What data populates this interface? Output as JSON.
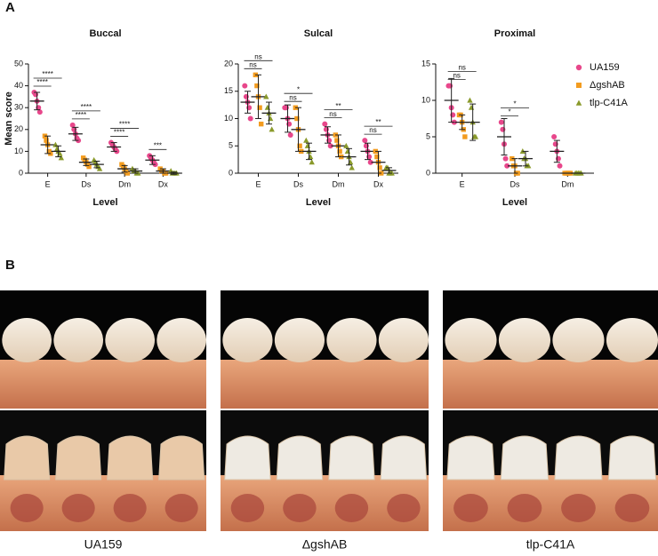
{
  "panel_labels": [
    "A",
    "B"
  ],
  "chart_data": [
    {
      "type": "dot-plot",
      "title": "Buccal",
      "xlabel": "Level",
      "ylabel": "Mean score",
      "categories": [
        "E",
        "Ds",
        "Dm",
        "Dx"
      ],
      "ylim": [
        0,
        50
      ],
      "yticks": [
        0,
        10,
        20,
        30,
        40,
        50
      ],
      "series": [
        {
          "color": "#e8478b",
          "marker": "circle",
          "values": [
            33,
            18,
            12,
            6
          ],
          "errors": [
            4,
            3,
            2,
            2
          ],
          "points": [
            [
              37,
              36,
              33,
              30,
              28
            ],
            [
              22,
              20,
              18,
              16,
              15
            ],
            [
              14,
              13,
              12,
              11,
              10
            ],
            [
              8,
              7,
              6,
              5,
              4
            ]
          ]
        },
        {
          "color": "#f39c1f",
          "marker": "square",
          "values": [
            13,
            5,
            2,
            1
          ],
          "errors": [
            4,
            1.5,
            1.5,
            1
          ],
          "points": [
            [
              17,
              15,
              13,
              10,
              9
            ],
            [
              7,
              6,
              5,
              4,
              3
            ],
            [
              4,
              3,
              2,
              1,
              0
            ],
            [
              2,
              1,
              1,
              0,
              0
            ]
          ]
        },
        {
          "color": "#8a9a2b",
          "marker": "triangle",
          "values": [
            10,
            4,
            1,
            0
          ],
          "errors": [
            2.5,
            1.5,
            1,
            0.5
          ],
          "points": [
            [
              13,
              11,
              10,
              9,
              7
            ],
            [
              6,
              5,
              4,
              3,
              2
            ],
            [
              2,
              1,
              1,
              0,
              0
            ],
            [
              1,
              0,
              0,
              0,
              0
            ]
          ]
        }
      ],
      "annotations": [
        {
          "category": 0,
          "pair": [
            0,
            1
          ],
          "text": "****"
        },
        {
          "category": 0,
          "pair": [
            0,
            2
          ],
          "text": "****"
        },
        {
          "category": 1,
          "pair": [
            0,
            1
          ],
          "text": "****"
        },
        {
          "category": 1,
          "pair": [
            0,
            2
          ],
          "text": "****"
        },
        {
          "category": 2,
          "pair": [
            0,
            1
          ],
          "text": "****"
        },
        {
          "category": 2,
          "pair": [
            0,
            2
          ],
          "text": "****"
        },
        {
          "category": 3,
          "pair": [
            0,
            1
          ],
          "text": "***"
        }
      ]
    },
    {
      "type": "dot-plot",
      "title": "Sulcal",
      "xlabel": "Level",
      "categories": [
        "E",
        "Ds",
        "Dm",
        "Dx"
      ],
      "ylim": [
        0,
        20
      ],
      "yticks": [
        0,
        5,
        10,
        15,
        20
      ],
      "series": [
        {
          "color": "#e8478b",
          "marker": "circle",
          "values": [
            13,
            10,
            7,
            4
          ],
          "errors": [
            2,
            2.5,
            1.5,
            1.5
          ],
          "points": [
            [
              16,
              14,
              13,
              12,
              10
            ],
            [
              12,
              12,
              10,
              9,
              7
            ],
            [
              9,
              8,
              7,
              6,
              5
            ],
            [
              6,
              5,
              4,
              3,
              2
            ]
          ]
        },
        {
          "color": "#f39c1f",
          "marker": "square",
          "values": [
            14,
            8,
            5,
            2
          ],
          "errors": [
            4,
            4,
            2,
            2
          ],
          "points": [
            [
              18,
              16,
              14,
              12,
              9
            ],
            [
              12,
              10,
              8,
              5,
              4
            ],
            [
              7,
              6,
              5,
              4,
              3
            ],
            [
              4,
              3,
              2,
              1,
              0
            ]
          ]
        },
        {
          "color": "#8a9a2b",
          "marker": "triangle",
          "values": [
            11,
            4,
            3,
            0.5
          ],
          "errors": [
            2,
            1.5,
            1.5,
            0.5
          ],
          "points": [
            [
              14,
              12,
              11,
              10,
              8
            ],
            [
              6,
              5,
              4,
              3,
              2
            ],
            [
              5,
              4,
              3,
              2,
              1
            ],
            [
              1,
              1,
              0,
              0,
              0
            ]
          ]
        }
      ],
      "annotations": [
        {
          "category": 0,
          "pair": [
            0,
            1
          ],
          "text": "ns"
        },
        {
          "category": 0,
          "pair": [
            0,
            2
          ],
          "text": "ns"
        },
        {
          "category": 1,
          "pair": [
            0,
            1
          ],
          "text": "ns"
        },
        {
          "category": 1,
          "pair": [
            0,
            2
          ],
          "text": "*"
        },
        {
          "category": 2,
          "pair": [
            0,
            1
          ],
          "text": "ns"
        },
        {
          "category": 2,
          "pair": [
            0,
            2
          ],
          "text": "**"
        },
        {
          "category": 3,
          "pair": [
            0,
            1
          ],
          "text": "ns"
        },
        {
          "category": 3,
          "pair": [
            0,
            2
          ],
          "text": "**"
        }
      ]
    },
    {
      "type": "dot-plot",
      "title": "Proximal",
      "xlabel": "Level",
      "legend": "right",
      "categories": [
        "E",
        "Ds",
        "Dm"
      ],
      "ylim": [
        0,
        15
      ],
      "yticks": [
        0,
        5,
        10,
        15
      ],
      "series": [
        {
          "name": "UA159",
          "color": "#e8478b",
          "marker": "circle",
          "values": [
            10,
            5,
            3
          ],
          "errors": [
            3,
            2.5,
            1.5
          ],
          "points": [
            [
              12,
              12,
              9,
              8,
              7
            ],
            [
              7,
              6,
              4,
              2,
              1
            ],
            [
              5,
              4,
              3,
              2,
              1
            ]
          ]
        },
        {
          "name": "ΔgshAB",
          "color": "#f39c1f",
          "marker": "square",
          "values": [
            7,
            1,
            0
          ],
          "errors": [
            1,
            1,
            0
          ],
          "points": [
            [
              8,
              8,
              7,
              6,
              5
            ],
            [
              2,
              1,
              1,
              0,
              0
            ],
            [
              0,
              0,
              0,
              0,
              0
            ]
          ]
        },
        {
          "name": "tlp-C41A",
          "color": "#8a9a2b",
          "marker": "triangle",
          "values": [
            7,
            2,
            0
          ],
          "errors": [
            2.5,
            1,
            0
          ],
          "points": [
            [
              10,
              9,
              7,
              5,
              5
            ],
            [
              3,
              2,
              2,
              1,
              1
            ],
            [
              0,
              0,
              0,
              0,
              0
            ]
          ]
        }
      ],
      "annotations": [
        {
          "category": 0,
          "pair": [
            0,
            1
          ],
          "text": "ns"
        },
        {
          "category": 0,
          "pair": [
            0,
            2
          ],
          "text": "ns"
        },
        {
          "category": 1,
          "pair": [
            0,
            1
          ],
          "text": "*"
        },
        {
          "category": 1,
          "pair": [
            0,
            2
          ],
          "text": "*"
        }
      ]
    }
  ],
  "photos": {
    "captions": [
      "UA159",
      "ΔgshAB",
      "tlp-C41A"
    ]
  }
}
